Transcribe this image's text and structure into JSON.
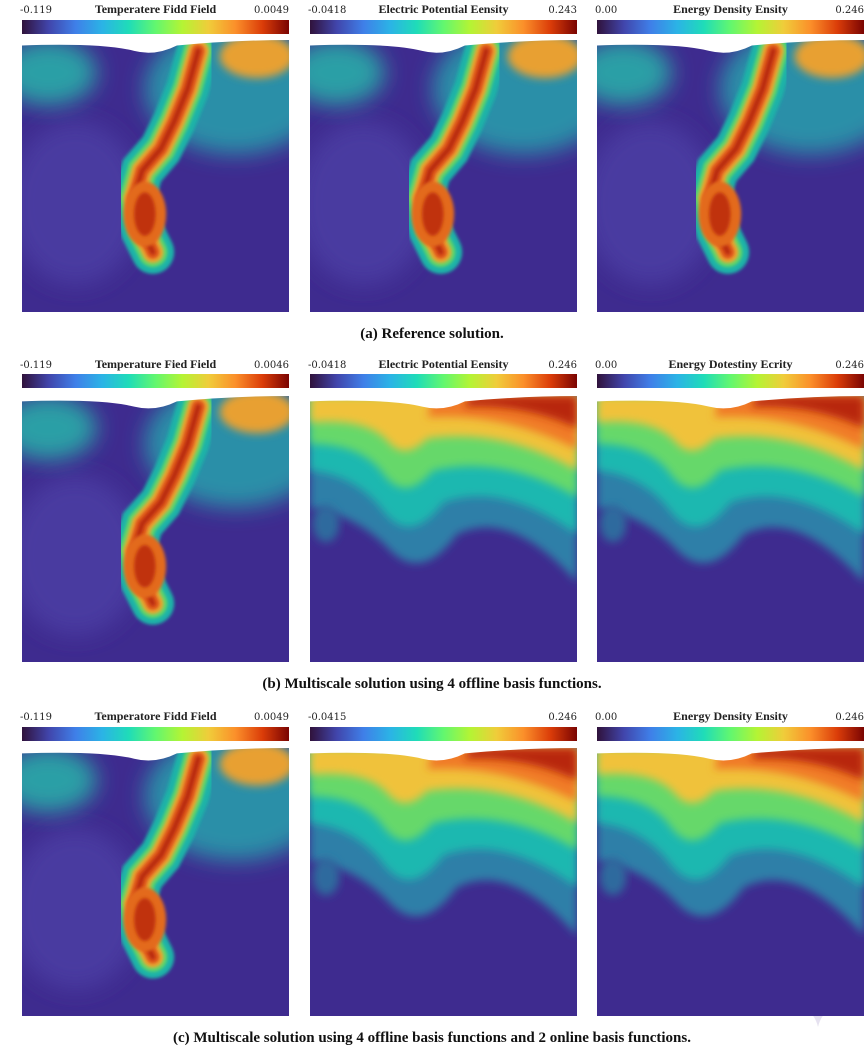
{
  "rows": [
    {
      "caption": "(a) Reference solution.",
      "panels": [
        {
          "min": "-0.119",
          "title": "Temperatere Fidd Field",
          "max": "0.0049"
        },
        {
          "min": "-0.0418",
          "title": "Electric Potential Eensity",
          "max": "0.243"
        },
        {
          "min": "0.00",
          "title": "Energy Density Ensity",
          "max": "0.246"
        }
      ]
    },
    {
      "caption": "(b) Multiscale solution using 4 offline basis functions.",
      "panels": [
        {
          "min": "-0.119",
          "title": "Temperature Fied Field",
          "max": "0.0046"
        },
        {
          "min": "-0.0418",
          "title": "Electric Potential Eensity",
          "max": "0.246"
        },
        {
          "min": "0.00",
          "title": "Energy Dotestiny Ecrity",
          "max": "0.246"
        }
      ]
    },
    {
      "caption": "(c) Multiscale solution using 4 offline basis functions and 2 online basis functions.",
      "panels": [
        {
          "min": "-0.119",
          "title": "Temperatore Fidd Field",
          "max": "0.0049"
        },
        {
          "min": "-0.0415",
          "max": "0.246"
        },
        {
          "min": "0.00",
          "title": "Energy Density Ensity",
          "max": "0.246"
        }
      ]
    }
  ]
}
